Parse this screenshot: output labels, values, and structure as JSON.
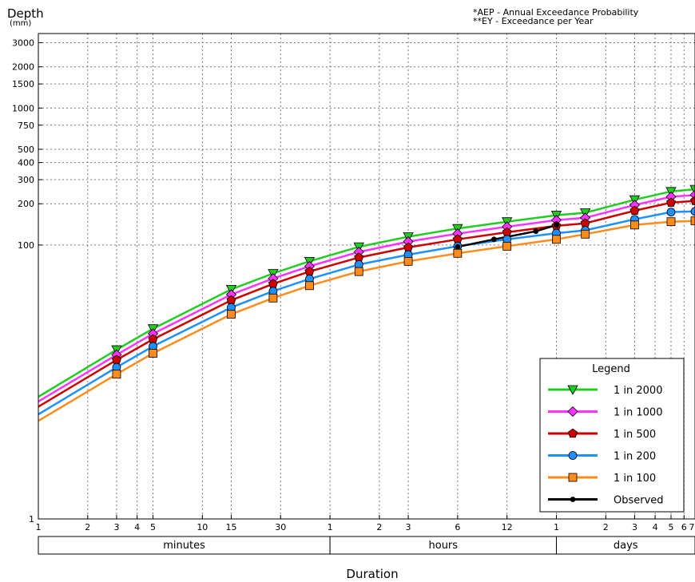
{
  "header": {
    "ylabel": "Depth",
    "yunit": "(mm)",
    "note1": "*AEP - Annual Exceedance Probability",
    "note2": "**EY - Exceedance per Year"
  },
  "chart_data": {
    "type": "line",
    "y_scale": "log",
    "ylim": [
      1,
      3500
    ],
    "grid": true,
    "xlabel": "Duration",
    "ylabel": "Depth (mm)",
    "y_ticks": [
      "1",
      "100",
      "200",
      "300",
      "400",
      "500",
      "750",
      "1000",
      "1500",
      "2000",
      "3000"
    ],
    "x_ticks": [
      {
        "minutes": 1,
        "label": "1"
      },
      {
        "minutes": 2,
        "label": "2"
      },
      {
        "minutes": 3,
        "label": "3"
      },
      {
        "minutes": 4,
        "label": "4"
      },
      {
        "minutes": 5,
        "label": "5"
      },
      {
        "minutes": 10,
        "label": "10"
      },
      {
        "minutes": 15,
        "label": "15"
      },
      {
        "minutes": 30,
        "label": "30"
      },
      {
        "minutes": 60,
        "label": "1"
      },
      {
        "minutes": 120,
        "label": "2"
      },
      {
        "minutes": 180,
        "label": "3"
      },
      {
        "minutes": 360,
        "label": "6"
      },
      {
        "minutes": 720,
        "label": "12"
      },
      {
        "minutes": 1440,
        "label": "1"
      },
      {
        "minutes": 2880,
        "label": "2"
      },
      {
        "minutes": 4320,
        "label": "3"
      },
      {
        "minutes": 5760,
        "label": "4"
      },
      {
        "minutes": 7200,
        "label": "5"
      },
      {
        "minutes": 8640,
        "label": "6"
      },
      {
        "minutes": 10080,
        "label": "7"
      }
    ],
    "duration_bands": [
      {
        "label": "minutes",
        "from": 1,
        "to": 60
      },
      {
        "label": "hours",
        "from": 60,
        "to": 1440
      },
      {
        "label": "days",
        "from": 1440,
        "to": 10080
      }
    ],
    "legend": {
      "title": "Legend",
      "position": "bottom-right"
    },
    "series": [
      {
        "name": "1 in 2000",
        "color": "#22cc22",
        "marker": "triangle-down",
        "x": [
          1,
          3,
          5,
          15,
          27,
          45,
          90,
          180,
          360,
          720,
          1440,
          2160,
          4320,
          7200,
          10080
        ],
        "y": [
          7.8,
          17.2,
          24.5,
          47.5,
          62,
          76,
          97,
          115,
          132,
          148,
          165,
          172,
          214,
          246,
          255
        ]
      },
      {
        "name": "1 in 1000",
        "color": "#ff33ff",
        "marker": "diamond",
        "x": [
          1,
          3,
          5,
          15,
          27,
          45,
          90,
          180,
          360,
          720,
          1440,
          2160,
          4320,
          7200,
          10080
        ],
        "y": [
          7.2,
          15.8,
          22.5,
          43.5,
          57,
          70,
          89,
          106,
          121,
          136,
          152,
          158,
          196,
          225,
          232
        ]
      },
      {
        "name": "1 in 500",
        "color": "#cc0000",
        "marker": "pentagon",
        "x": [
          1,
          3,
          5,
          15,
          27,
          45,
          90,
          180,
          360,
          720,
          1440,
          2160,
          4320,
          7200,
          10080
        ],
        "y": [
          6.6,
          14.5,
          20.5,
          39.5,
          52,
          64,
          81,
          96,
          110,
          124,
          138,
          144,
          178,
          204,
          210
        ]
      },
      {
        "name": "1 in 200",
        "color": "#1e90ff",
        "marker": "circle",
        "x": [
          1,
          3,
          5,
          15,
          27,
          45,
          90,
          180,
          360,
          720,
          1440,
          2160,
          4320,
          7200,
          10080
        ],
        "y": [
          5.8,
          12.8,
          18.2,
          35,
          46,
          56.5,
          72,
          85,
          98,
          110,
          122,
          128,
          154,
          174,
          176
        ]
      },
      {
        "name": "1 in 100",
        "color": "#ff8c1a",
        "marker": "square",
        "x": [
          1,
          3,
          5,
          15,
          27,
          45,
          90,
          180,
          360,
          720,
          1440,
          2160,
          4320,
          7200,
          10080
        ],
        "y": [
          5.2,
          11.4,
          16.2,
          31.2,
          41,
          50.5,
          64,
          76,
          87,
          98,
          110,
          120,
          140,
          148,
          150
        ]
      },
      {
        "name": "Observed",
        "color": "#000000",
        "marker": "dot",
        "x": [
          360,
          600,
          1080,
          1440
        ],
        "y": [
          97,
          110,
          126,
          140
        ]
      }
    ]
  }
}
